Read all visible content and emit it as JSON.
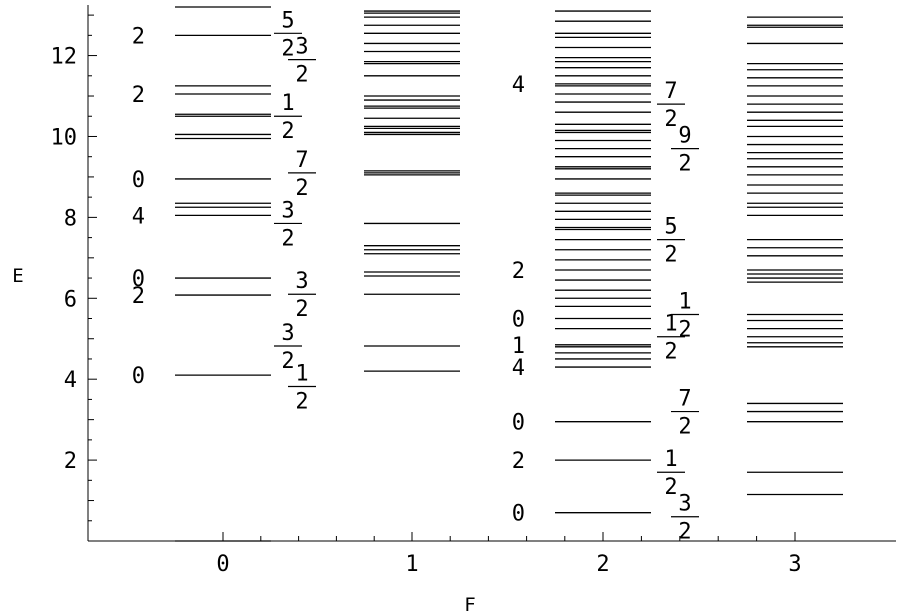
{
  "chart_data": {
    "type": "line",
    "title": "",
    "xlabel": "F",
    "ylabel": "E",
    "x_ticks": [
      "0",
      "1",
      "2",
      "3"
    ],
    "y_ticks": [
      2,
      4,
      6,
      8,
      10,
      12
    ],
    "ylim": [
      0,
      13.25
    ],
    "grid": false,
    "colors": {
      "line": "#000000",
      "background": "#ffffff"
    },
    "series": [
      {
        "x": 0,
        "levels": [
          0.0,
          4.1,
          6.08,
          6.5,
          8.05,
          8.25,
          8.35,
          8.95,
          9.95,
          10.05,
          10.5,
          10.55,
          11.05,
          11.25,
          12.5,
          13.2
        ],
        "labels": [
          {
            "text": "0",
            "e": 4.1
          },
          {
            "text": "2",
            "e": 6.08
          },
          {
            "text": "0",
            "e": 6.5
          },
          {
            "text": "4",
            "e": 8.05
          },
          {
            "text": "0",
            "e": 8.95
          },
          {
            "text": "2",
            "e": 11.05
          },
          {
            "text": "2",
            "e": 12.5
          }
        ]
      },
      {
        "x": 1,
        "levels": [
          4.2,
          4.82,
          6.1,
          6.55,
          6.65,
          7.1,
          7.2,
          7.3,
          7.85,
          9.05,
          9.1,
          9.15,
          10.05,
          10.1,
          10.2,
          10.25,
          10.45,
          10.7,
          10.75,
          10.9,
          11.0,
          11.5,
          11.8,
          11.85,
          12.1,
          12.3,
          12.55,
          12.75,
          12.95,
          13.05,
          13.1
        ],
        "labels": [
          {
            "num": "1",
            "den": "2",
            "e": 3.82
          },
          {
            "num": "3",
            "den": "2",
            "e": 4.82
          },
          {
            "num": "3",
            "den": "2",
            "e": 6.1
          },
          {
            "num": "3",
            "den": "2",
            "e": 7.85
          },
          {
            "num": "7",
            "den": "2",
            "e": 9.1
          },
          {
            "num": "1",
            "den": "2",
            "e": 10.5
          },
          {
            "num": "3",
            "den": "2",
            "e": 11.9
          },
          {
            "num": "5",
            "den": "2",
            "e": 12.55
          }
        ]
      },
      {
        "x": 2,
        "levels": [
          0.7,
          2.0,
          2.95,
          4.3,
          4.5,
          4.65,
          4.8,
          4.85,
          5.25,
          5.5,
          5.8,
          6.0,
          6.2,
          6.45,
          6.7,
          6.95,
          7.2,
          7.45,
          7.7,
          7.75,
          7.95,
          8.15,
          8.35,
          8.55,
          8.6,
          8.95,
          9.2,
          9.25,
          9.5,
          9.7,
          9.9,
          10.1,
          10.15,
          10.3,
          10.6,
          10.85,
          11.05,
          11.25,
          11.3,
          11.5,
          11.7,
          11.85,
          11.95,
          12.2,
          12.45,
          12.55,
          12.85,
          13.1
        ],
        "labels": [
          {
            "text": "0",
            "e": 0.7
          },
          {
            "text": "2",
            "e": 2.0
          },
          {
            "text": "0",
            "e": 2.95
          },
          {
            "text": "4",
            "e": 4.3
          },
          {
            "text": "1",
            "e": 4.85
          },
          {
            "text": "0",
            "e": 5.5
          },
          {
            "text": "2",
            "e": 6.7
          },
          {
            "text": "4",
            "e": 11.3
          }
        ]
      },
      {
        "x": 3,
        "levels": [
          1.15,
          1.7,
          2.95,
          3.2,
          3.4,
          4.8,
          4.9,
          5.05,
          5.25,
          5.45,
          5.6,
          6.4,
          6.5,
          6.6,
          6.7,
          7.05,
          7.25,
          7.45,
          8.05,
          8.25,
          8.35,
          8.6,
          8.8,
          9.05,
          9.25,
          9.45,
          9.6,
          9.8,
          10.0,
          10.25,
          10.4,
          10.6,
          10.8,
          11.0,
          11.25,
          11.45,
          11.65,
          11.8,
          12.3,
          12.7,
          12.75,
          12.95
        ],
        "labels": [
          {
            "num": "3",
            "den": "2",
            "e": 0.6
          },
          {
            "num": "1",
            "den": "2",
            "e": 1.7
          },
          {
            "num": "7",
            "den": "2",
            "e": 3.2
          },
          {
            "num": "1",
            "den": "2",
            "e": 5.05
          },
          {
            "num": "1",
            "den": "2",
            "e": 5.6
          },
          {
            "num": "5",
            "den": "2",
            "e": 7.45
          },
          {
            "num": "9",
            "den": "2",
            "e": 9.7
          },
          {
            "num": "7",
            "den": "2",
            "e": 10.8
          }
        ]
      }
    ]
  }
}
